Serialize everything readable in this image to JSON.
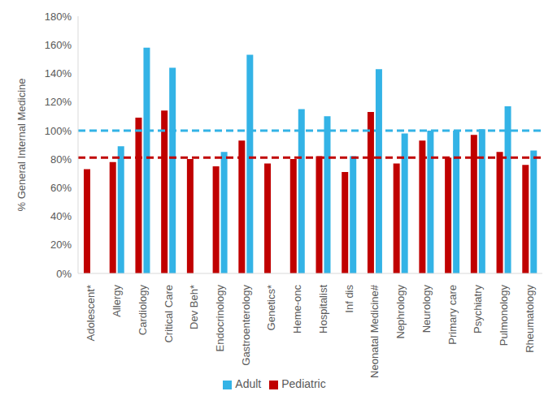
{
  "chart_data": {
    "type": "bar",
    "y_label": "% General Internal Medicine",
    "categories": [
      "Adolescent*",
      "Allergy",
      "Cardiology",
      "Critical Care",
      "Dev Beh*",
      "Endocrinology",
      "Gastroenterology",
      "Genetics*",
      "Heme-onc",
      "Hospitalist",
      "Inf dis",
      "Neonatal Medicine#",
      "Nephrology",
      "Neurology",
      "Primary care",
      "Psychiatry",
      "Pulmonology",
      "Rheumatology"
    ],
    "series": [
      {
        "name": "Pediatric",
        "color": "#c00000",
        "values": [
          73,
          78,
          109,
          114,
          80,
          75,
          93,
          77,
          80,
          82,
          71,
          113,
          77,
          93,
          81,
          97,
          85,
          76
        ],
        "reference": 81
      },
      {
        "name": "Adult",
        "color": "#33b3e6",
        "values": [
          null,
          89,
          158,
          144,
          null,
          85,
          153,
          null,
          115,
          110,
          82,
          143,
          98,
          100,
          100,
          101,
          117,
          86
        ],
        "reference": 100
      }
    ],
    "ylim": [
      0,
      180
    ],
    "yticks": [
      {
        "value": 0,
        "label": "0%"
      },
      {
        "value": 20,
        "label": "20%"
      },
      {
        "value": 40,
        "label": "40%"
      },
      {
        "value": 60,
        "label": "60%"
      },
      {
        "value": 80,
        "label": "80%"
      },
      {
        "value": 100,
        "label": "100%"
      },
      {
        "value": 120,
        "label": "120%"
      },
      {
        "value": 140,
        "label": "140%"
      },
      {
        "value": 160,
        "label": "160%"
      },
      {
        "value": 180,
        "label": "180%"
      }
    ],
    "grid": false,
    "legend": "bottom"
  }
}
